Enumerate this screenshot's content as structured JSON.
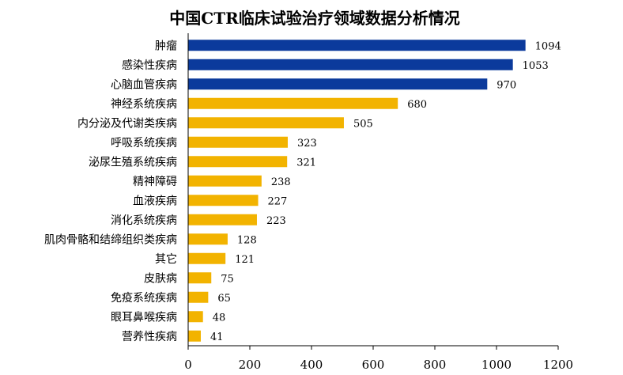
{
  "chart_data": {
    "type": "bar",
    "orientation": "horizontal",
    "title": "中国CTR临床试验治疗领域数据分析情况",
    "categories": [
      "肿瘤",
      "感染性疾病",
      "心脑血管疾病",
      "神经系统疾病",
      "内分泌及代谢类疾病",
      "呼吸系统疾病",
      "泌尿生殖系统疾病",
      "精神障碍",
      "血液疾病",
      "消化系统疾病",
      "肌肉骨骼和结缔组织类疾病",
      "其它",
      "皮肤病",
      "免疫系统疾病",
      "眼耳鼻喉疾病",
      "营养性疾病"
    ],
    "values": [
      1094,
      1053,
      970,
      680,
      505,
      323,
      321,
      238,
      227,
      223,
      128,
      121,
      75,
      65,
      48,
      41
    ],
    "value_labels": [
      "1094",
      "1053",
      "970",
      "680",
      "505",
      "323",
      "321",
      "238",
      "227",
      "223",
      "128",
      "121",
      "75",
      "65",
      "48",
      "41"
    ],
    "colors": [
      "#0b3a9c",
      "#0b3a9c",
      "#0b3a9c",
      "#f2b300",
      "#f2b300",
      "#f2b300",
      "#f2b300",
      "#f2b300",
      "#f2b300",
      "#f2b300",
      "#f2b300",
      "#f2b300",
      "#f2b300",
      "#f2b300",
      "#f2b300",
      "#f2b300"
    ],
    "xlim": [
      0,
      1200
    ],
    "xticks": [
      "0",
      "200",
      "400",
      "600",
      "800",
      "1000",
      "1200"
    ],
    "xtick_values": [
      0,
      200,
      400,
      600,
      800,
      1000,
      1200
    ],
    "grid": false,
    "legend": "none"
  }
}
